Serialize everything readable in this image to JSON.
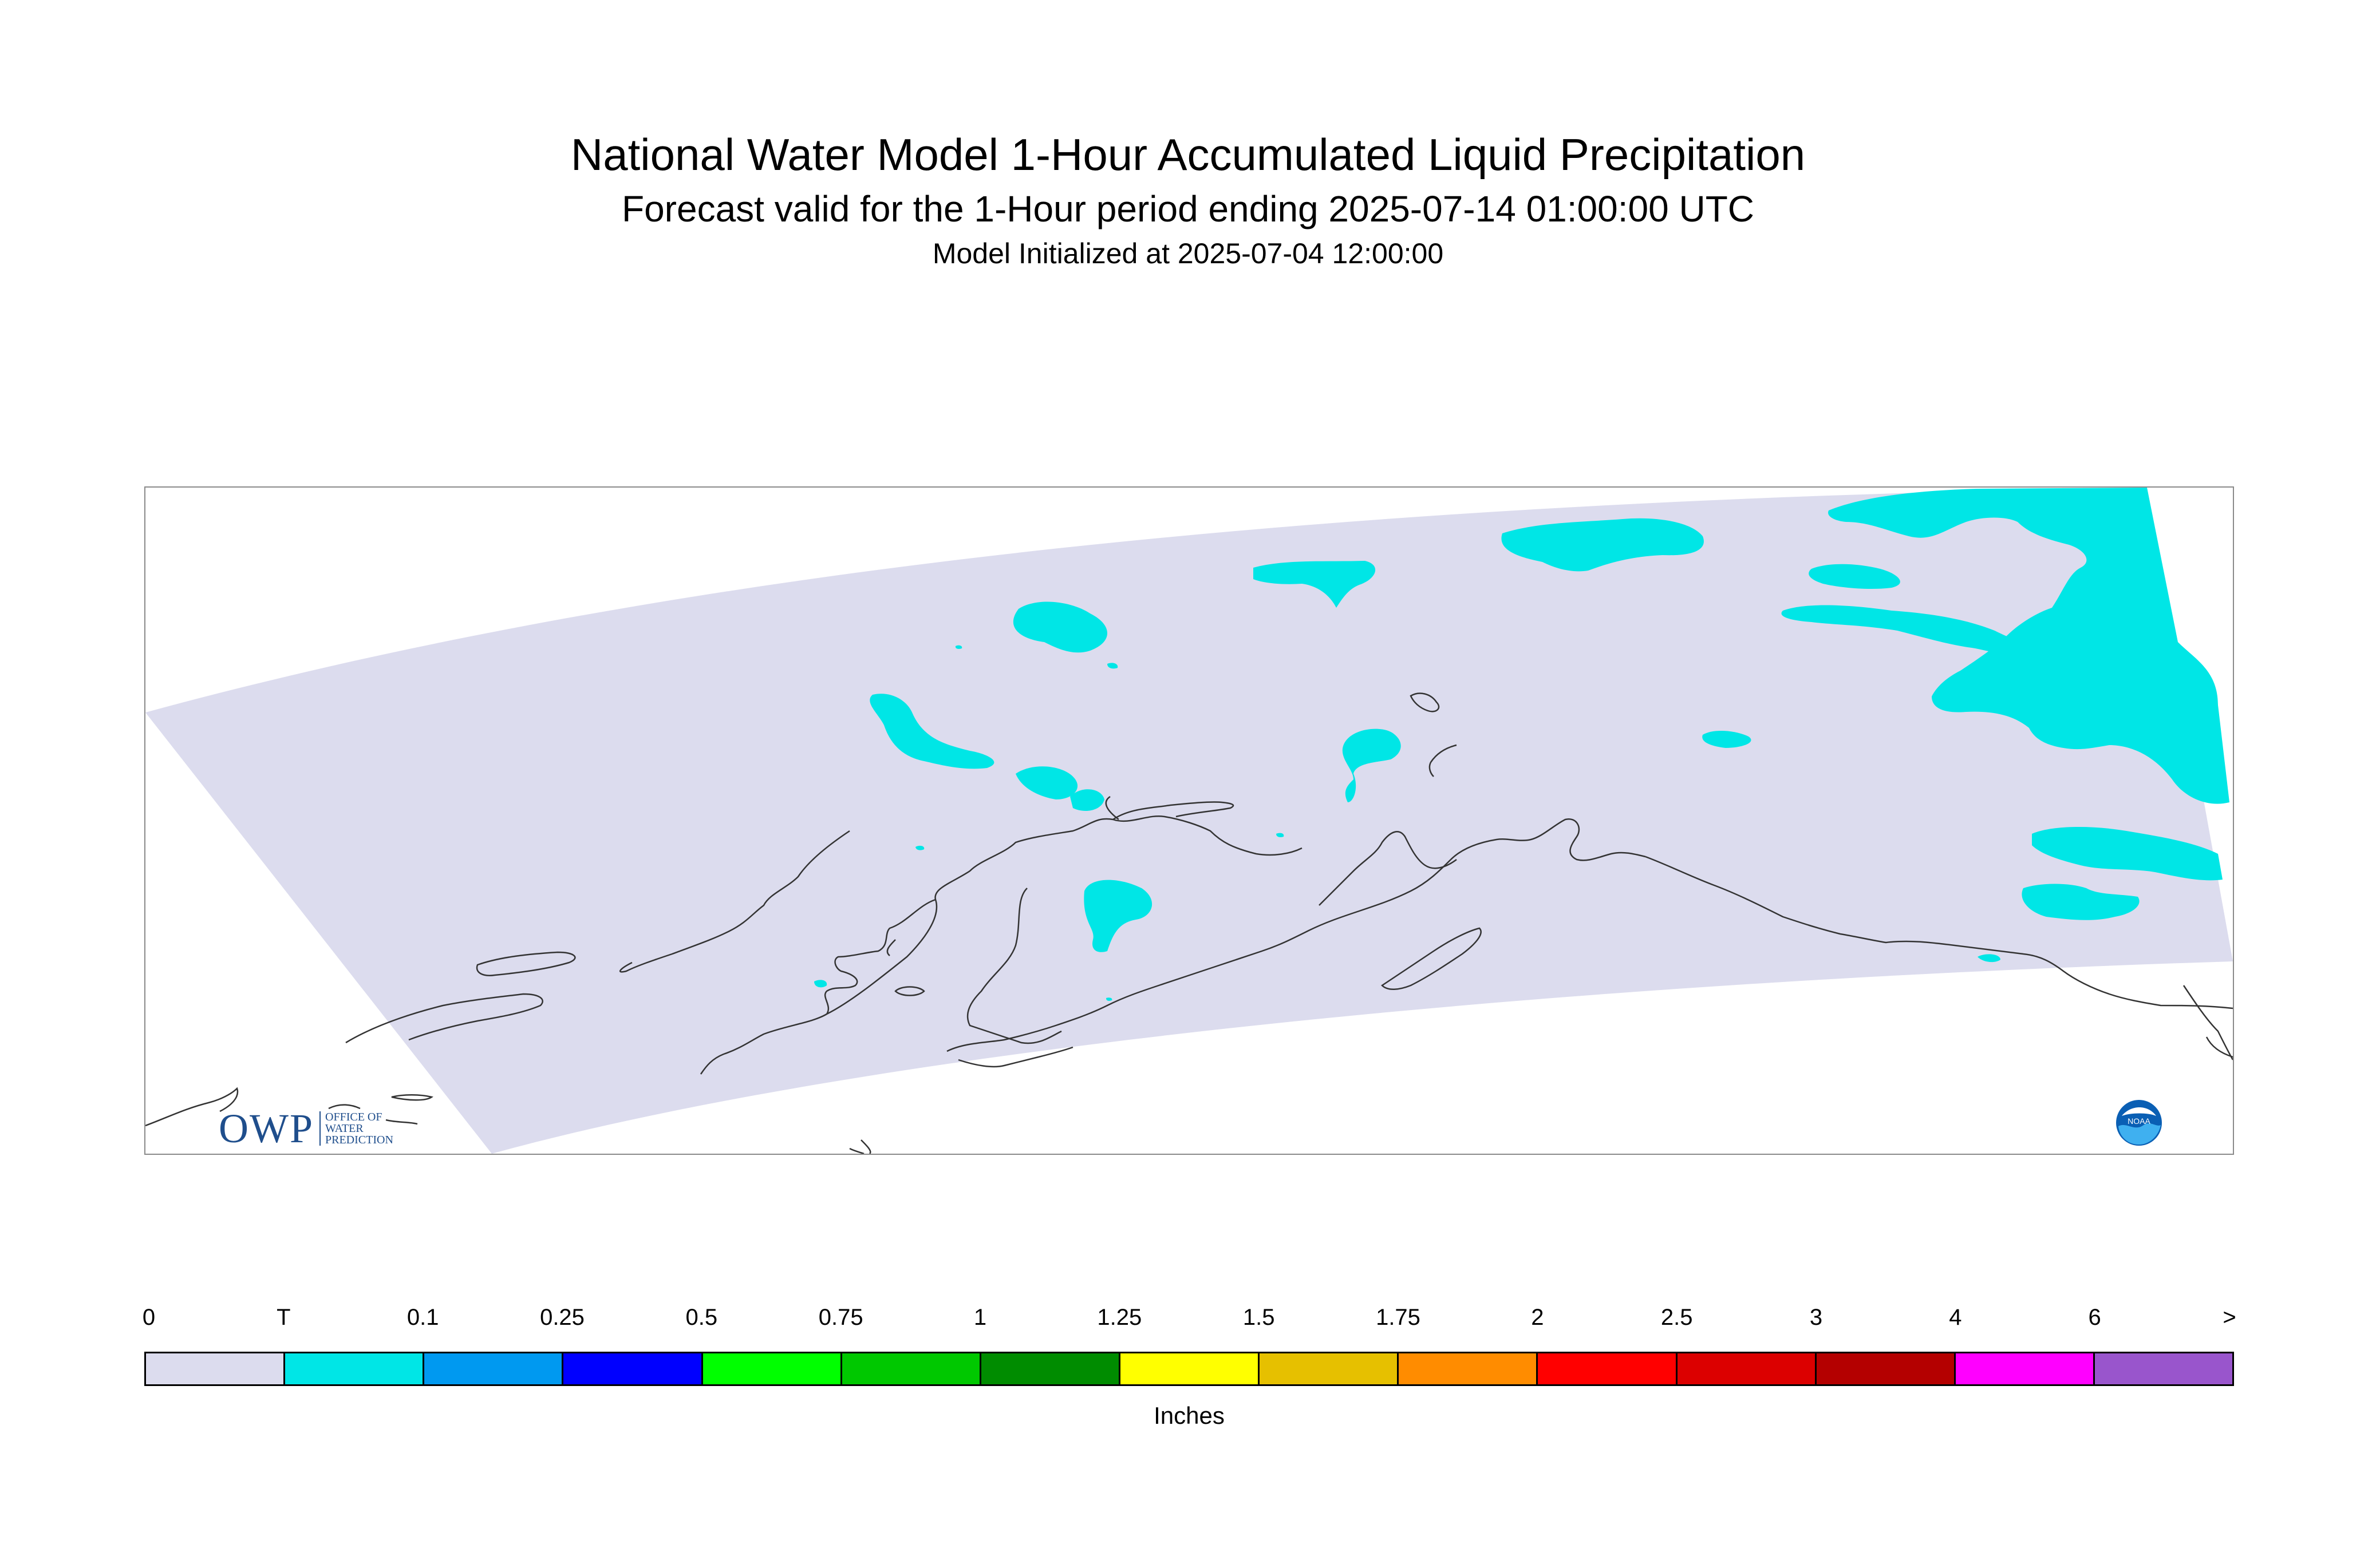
{
  "header": {
    "title": "National Water Model 1-Hour Accumulated Liquid Precipitation",
    "subtitle": "Forecast valid for the 1-Hour period ending 2025-07-14 01:00:00 UTC",
    "init_line": "Model Initialized at 2025-07-04 12:00:00"
  },
  "logos": {
    "owp_word": "OWP",
    "owp_sub_1": "OFFICE OF",
    "owp_sub_2": "WATER",
    "owp_sub_3": "PREDICTION",
    "noaa": "NOAA"
  },
  "legend": {
    "labels": [
      "0",
      "T",
      "0.1",
      "0.25",
      "0.5",
      "0.75",
      "1",
      "1.25",
      "1.5",
      "1.75",
      "2",
      "2.5",
      "3",
      "4",
      "6",
      ">"
    ],
    "colors": [
      "#dcdcee",
      "#00e6e6",
      "#0099f0",
      "#0000ff",
      "#00ff00",
      "#00c800",
      "#008c00",
      "#ffff00",
      "#e6c000",
      "#ff8c00",
      "#ff0000",
      "#dc0000",
      "#b40000",
      "#ff00ff",
      "#9955cc"
    ],
    "units": "Inches"
  },
  "map_colors": {
    "domain_fill": "#dcdcee",
    "trace_fill": "#00e6e6",
    "coastline": "#333333"
  }
}
